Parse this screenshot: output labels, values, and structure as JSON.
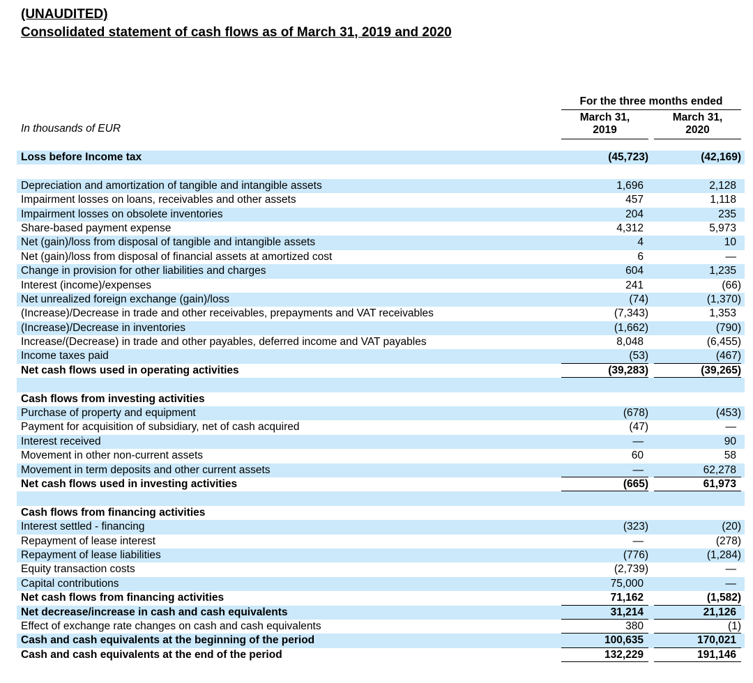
{
  "title": {
    "line1": "(UNAUDITED)",
    "line2": "Consolidated statement of cash flows as of March 31, 2019 and 2020"
  },
  "table": {
    "unit_label": "In thousands of EUR",
    "period_header": "For the three months ended",
    "columns": [
      {
        "line1": "March 31,",
        "line2": "2019"
      },
      {
        "line1": "March 31,",
        "line2": "2020"
      }
    ],
    "rows": [
      {
        "label": "Loss before Income tax",
        "v1": "(45,723)",
        "v2": "(42,169)",
        "bold": true,
        "shaded": true
      },
      {
        "spacer": true,
        "shaded": false
      },
      {
        "label": "Depreciation and amortization of tangible and intangible assets",
        "v1": "1,696",
        "v2": "2,128",
        "shaded": true
      },
      {
        "label": "Impairment losses on loans, receivables and other assets",
        "v1": "457",
        "v2": "1,118",
        "shaded": false
      },
      {
        "label": "Impairment losses on obsolete inventories",
        "v1": "204",
        "v2": "235",
        "shaded": true
      },
      {
        "label": "Share-based payment expense",
        "v1": "4,312",
        "v2": "5,973",
        "shaded": false
      },
      {
        "label": "Net (gain)/loss from disposal of tangible and intangible assets",
        "v1": "4",
        "v2": "10",
        "shaded": true
      },
      {
        "label": "Net (gain)/loss from disposal of financial assets at amortized cost",
        "v1": "6",
        "v2": "—",
        "shaded": false
      },
      {
        "label": "Change in provision for other liabilities and charges",
        "v1": "604",
        "v2": "1,235",
        "shaded": true
      },
      {
        "label": "Interest (income)/expenses",
        "v1": "241",
        "v2": "(66)",
        "shaded": false
      },
      {
        "label": "Net unrealized foreign exchange (gain)/loss",
        "v1": "(74)",
        "v2": "(1,370)",
        "shaded": true
      },
      {
        "label": "(Increase)/Decrease in trade and other receivables, prepayments and VAT receivables",
        "v1": "(7,343)",
        "v2": "1,353",
        "shaded": false
      },
      {
        "label": "(Increase)/Decrease in inventories",
        "v1": "(1,662)",
        "v2": "(790)",
        "shaded": true
      },
      {
        "label": "Increase/(Decrease) in trade and other payables, deferred income and VAT payables",
        "v1": "8,048",
        "v2": "(6,455)",
        "shaded": false
      },
      {
        "label": "Income taxes paid",
        "v1": "(53)",
        "v2": "(467)",
        "shaded": true,
        "underline": true
      },
      {
        "label": "Net cash flows used in operating activities",
        "v1": "(39,283)",
        "v2": "(39,265)",
        "bold": true,
        "shaded": false,
        "underline": true
      },
      {
        "spacer": true,
        "shaded": true
      },
      {
        "label": "Cash flows from investing activities",
        "bold": true,
        "shaded": false
      },
      {
        "label": "Purchase of property and equipment",
        "v1": "(678)",
        "v2": "(453)",
        "shaded": true
      },
      {
        "label": "Payment for acquisition of subsidiary, net of cash acquired",
        "v1": "(47)",
        "v2": "—",
        "shaded": false
      },
      {
        "label": "Interest received",
        "v1": "—",
        "v2": "90",
        "shaded": true
      },
      {
        "label": "Movement in other non-current assets",
        "v1": "60",
        "v2": "58",
        "shaded": false
      },
      {
        "label": "Movement in term deposits and other current assets",
        "v1": "—",
        "v2": "62,278",
        "shaded": true,
        "underline": true
      },
      {
        "label": "Net cash flows used in investing activities",
        "v1": "(665)",
        "v2": "61,973",
        "bold": true,
        "shaded": false,
        "underline": true
      },
      {
        "spacer": true,
        "shaded": true
      },
      {
        "label": "Cash flows from financing activities",
        "bold": true,
        "shaded": false
      },
      {
        "label": "Interest settled - financing",
        "v1": "(323)",
        "v2": "(20)",
        "shaded": true
      },
      {
        "label": "Repayment of lease interest",
        "v1": "—",
        "v2": "(278)",
        "shaded": false
      },
      {
        "label": "Repayment of lease liabilities",
        "v1": "(776)",
        "v2": "(1,284)",
        "shaded": true
      },
      {
        "label": "Equity transaction costs",
        "v1": "(2,739)",
        "v2": "—",
        "shaded": false
      },
      {
        "label": "Capital contributions",
        "v1": "75,000",
        "v2": "—",
        "shaded": true
      },
      {
        "label": "Net cash flows from financing activities",
        "v1": "71,162",
        "v2": "(1,582)",
        "bold": true,
        "shaded": false,
        "underline": true
      },
      {
        "label": "Net decrease/increase in cash and cash equivalents",
        "v1": "31,214",
        "v2": "21,126",
        "bold": true,
        "shaded": true,
        "underline": true
      },
      {
        "label": "Effect of exchange rate changes on cash and cash equivalents",
        "v1": "380",
        "v2": "(1)",
        "shaded": false,
        "underline": true
      },
      {
        "label": "Cash and cash equivalents at the beginning of the period",
        "v1": "100,635",
        "v2": "170,021",
        "bold": true,
        "shaded": true,
        "underline": true
      },
      {
        "label": "Cash and cash equivalents at the end of the period",
        "v1": "132,229",
        "v2": "191,146",
        "bold": true,
        "shaded": false,
        "underline": true
      }
    ]
  }
}
